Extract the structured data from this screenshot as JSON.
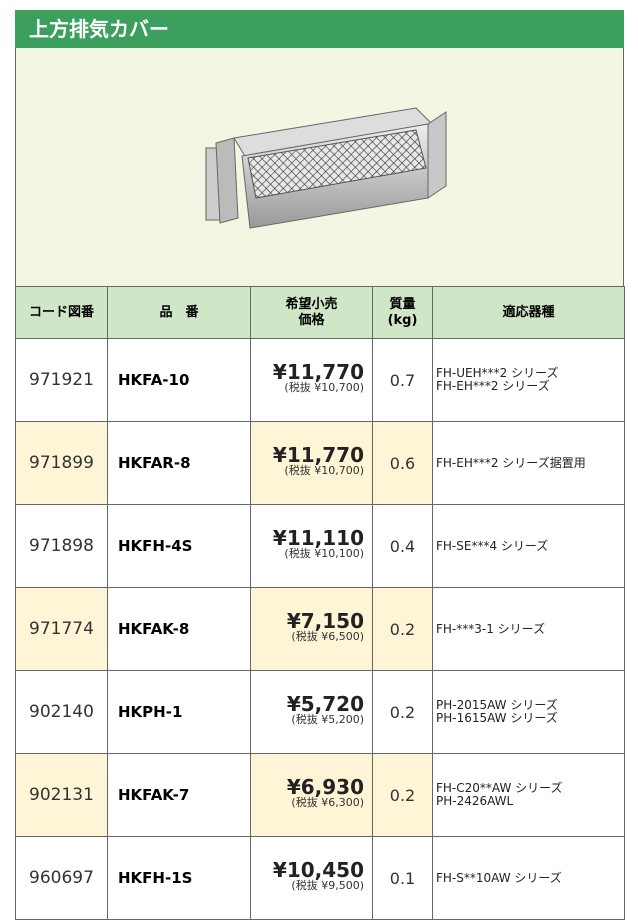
{
  "header": {
    "title": "上方排気カバー"
  },
  "table": {
    "columns": [
      [
        "コード図番"
      ],
      [
        "品　番"
      ],
      [
        "希望小売",
        "価格"
      ],
      [
        "質量",
        "(kg)"
      ],
      [
        "適応器種"
      ]
    ],
    "rows": [
      {
        "code": "971921",
        "part": "HKFA-10",
        "price": "¥11,770",
        "tax": "(税抜 ¥10,700)",
        "weight": "0.7",
        "models": [
          "FH-UEH***2 シリーズ",
          "FH-EH***2 シリーズ"
        ]
      },
      {
        "code": "971899",
        "part": "HKFAR-8",
        "price": "¥11,770",
        "tax": "(税抜 ¥10,700)",
        "weight": "0.6",
        "models": [
          "FH-EH***2 シリーズ据置用"
        ]
      },
      {
        "code": "971898",
        "part": "HKFH-4S",
        "price": "¥11,110",
        "tax": "(税抜 ¥10,100)",
        "weight": "0.4",
        "models": [
          "FH-SE***4 シリーズ"
        ]
      },
      {
        "code": "971774",
        "part": "HKFAK-8",
        "price": "¥7,150",
        "tax": "(税抜 ¥6,500)",
        "weight": "0.2",
        "models": [
          "FH-***3-1 シリーズ"
        ]
      },
      {
        "code": "902140",
        "part": "HKPH-1",
        "price": "¥5,720",
        "tax": "(税抜 ¥5,200)",
        "weight": "0.2",
        "models": [
          "PH-2015AW シリーズ",
          "PH-1615AW シリーズ"
        ]
      },
      {
        "code": "902131",
        "part": "HKFAK-7",
        "price": "¥6,930",
        "tax": "(税抜 ¥6,300)",
        "weight": "0.2",
        "models": [
          "FH-C20**AW シリーズ",
          "PH-2426AWL"
        ]
      },
      {
        "code": "960697",
        "part": "HKFH-1S",
        "price": "¥10,450",
        "tax": "(税抜 ¥9,500)",
        "weight": "0.1",
        "models": [
          "FH-S**10AW シリーズ"
        ]
      }
    ]
  }
}
